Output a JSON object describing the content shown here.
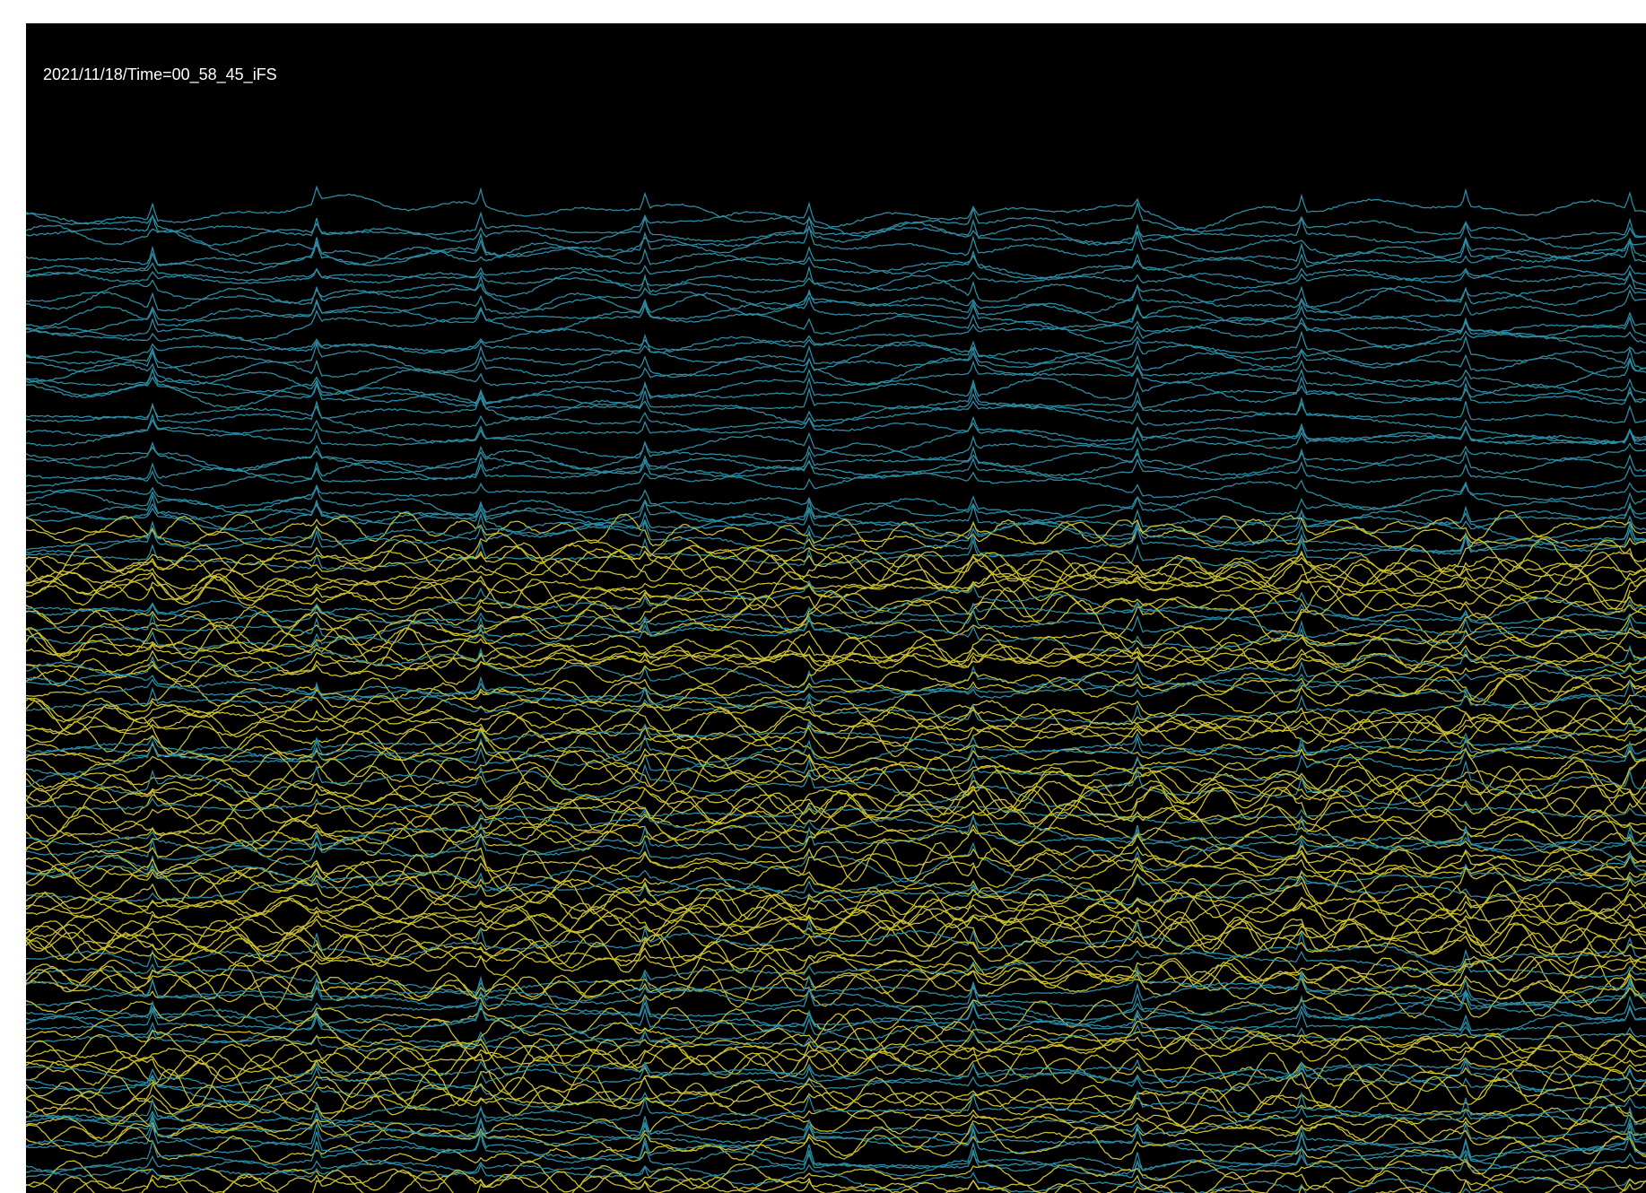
{
  "header": {
    "timestamp": "2021/11/18/Time=00_58_45_iFS"
  }
}
